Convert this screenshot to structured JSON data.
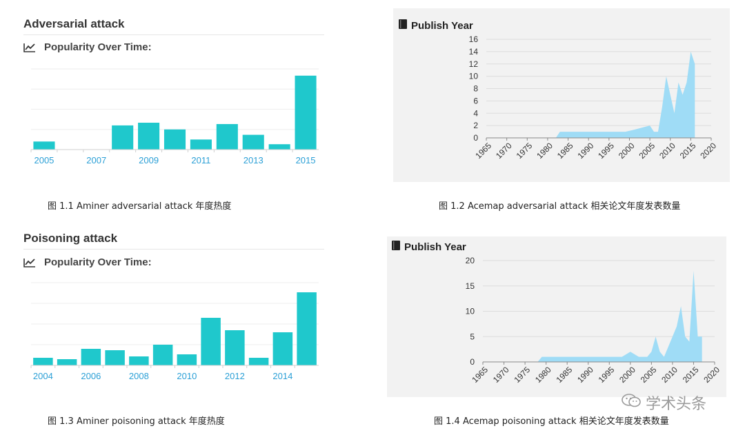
{
  "captions": {
    "c1": "图 1.1 Aminer adversarial attack 年度热度",
    "c2": "图 1.2 Acemap adversarial attack 相关论文年度发表数量",
    "c3": "图 1.3 Aminer poisoning attack 年度热度",
    "c4": "图 1.4 Acemap poisoning attack 相关论文年度发表数量"
  },
  "panels": {
    "p1": {
      "title": "Adversarial attack",
      "subtitle": "Popularity Over Time:"
    },
    "p2": {
      "header": "Publish Year"
    },
    "p3": {
      "title": "Poisoning attack",
      "subtitle": "Popularity Over Time:"
    },
    "p4": {
      "header": "Publish Year"
    }
  },
  "watermark": "学术头条",
  "colors": {
    "bar": "#1fc8cc",
    "area": "#9fdcf6",
    "grid": "#dcdcdc",
    "tick": "#2a9fd6"
  },
  "chart_data": [
    {
      "id": "c1",
      "type": "bar",
      "categories": [
        "2005",
        "2006",
        "2007",
        "2008",
        "2009",
        "2010",
        "2011",
        "2012",
        "2013",
        "2014",
        "2015"
      ],
      "tick_labels": [
        "2005",
        "",
        "2007",
        "",
        "2009",
        "",
        "2011",
        "",
        "2013",
        "",
        "2015"
      ],
      "values": [
        1.2,
        0,
        0,
        3.6,
        4.0,
        3.0,
        1.5,
        3.8,
        2.2,
        0.8,
        11
      ],
      "ylim": [
        0,
        12
      ],
      "grid": true
    },
    {
      "id": "c2",
      "type": "area",
      "x": [
        1965,
        1982,
        1983,
        1999,
        2001,
        2005,
        2006,
        2007,
        2008,
        2009,
        2010,
        2011,
        2012,
        2013,
        2014,
        2015,
        2016
      ],
      "values": [
        0,
        0,
        1,
        1,
        1.3,
        2,
        1,
        1,
        5,
        10,
        7,
        4,
        9,
        7,
        9,
        14,
        12
      ],
      "xticks": [
        1965,
        1970,
        1975,
        1980,
        1985,
        1990,
        1995,
        2000,
        2005,
        2010,
        2015,
        2020
      ],
      "yticks": [
        0,
        2,
        4,
        6,
        8,
        10,
        12,
        14,
        16
      ],
      "xlim": [
        1965,
        2020
      ],
      "ylim": [
        0,
        16
      ],
      "grid": true
    },
    {
      "id": "c3",
      "type": "bar",
      "categories": [
        "2004",
        "2005",
        "2006",
        "2007",
        "2008",
        "2009",
        "2010",
        "2011",
        "2012",
        "2013",
        "2014",
        "2015"
      ],
      "tick_labels": [
        "2004",
        "",
        "2006",
        "",
        "2008",
        "",
        "2010",
        "",
        "2012",
        "",
        "2014",
        ""
      ],
      "values": [
        1.1,
        0.9,
        2.4,
        2.2,
        1.3,
        3.0,
        1.6,
        6.9,
        5.1,
        1.1,
        4.8,
        10.6
      ],
      "ylim": [
        0,
        12
      ],
      "grid": true
    },
    {
      "id": "c4",
      "type": "area",
      "x": [
        1965,
        1978,
        1979,
        1998,
        2000,
        2002,
        2004,
        2005,
        2006,
        2007,
        2008,
        2010,
        2011,
        2012,
        2013,
        2014,
        2015,
        2016,
        2017
      ],
      "values": [
        0,
        0,
        1,
        1,
        2,
        1,
        1,
        2,
        5,
        2,
        1,
        5,
        7,
        11,
        5,
        4,
        18,
        5,
        5
      ],
      "xticks": [
        1965,
        1970,
        1975,
        1980,
        1985,
        1990,
        1995,
        2000,
        2005,
        2010,
        2015,
        2020
      ],
      "yticks": [
        0,
        5,
        10,
        15,
        20
      ],
      "xlim": [
        1965,
        2020
      ],
      "ylim": [
        0,
        20
      ],
      "grid": true
    }
  ]
}
